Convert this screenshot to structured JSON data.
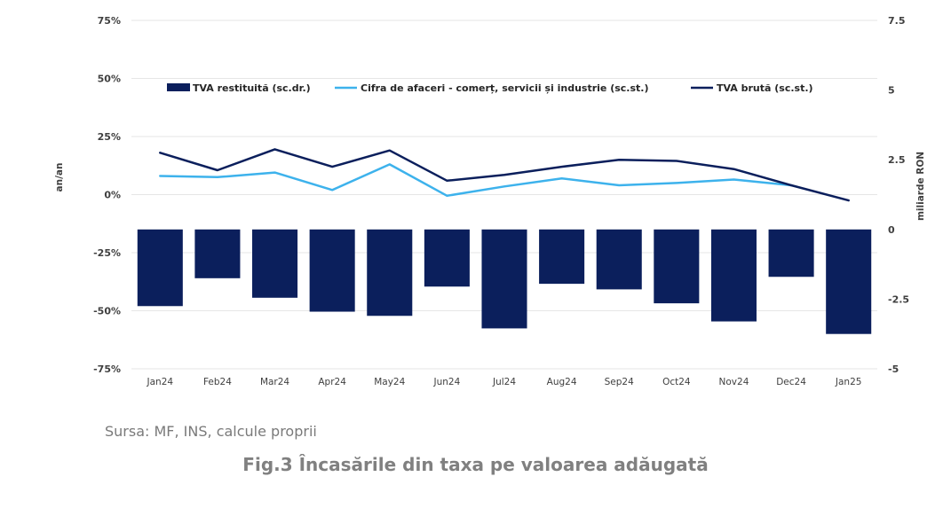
{
  "chart_data": {
    "type": "bar",
    "categories": [
      "Jan24",
      "Feb24",
      "Mar24",
      "Apr24",
      "May24",
      "Jun24",
      "Jul24",
      "Aug24",
      "Sep24",
      "Oct24",
      "Nov24",
      "Dec24",
      "Jan25"
    ],
    "bar_series": {
      "name": "TVA restituită (sc.dr.)",
      "axis": "right",
      "color": "#0b1f5c",
      "values": [
        -2.75,
        -1.75,
        -2.45,
        -2.95,
        -3.1,
        -2.05,
        -3.55,
        -1.95,
        -2.15,
        -2.65,
        -3.3,
        -1.7,
        -3.75
      ]
    },
    "line_series": [
      {
        "name": "Cifra de afaceri - comerț, servicii și industrie (sc.st.)",
        "axis": "left",
        "color": "#3db2ec",
        "values": [
          8,
          7.5,
          9.5,
          2,
          13,
          -0.5,
          3.5,
          7,
          4,
          5,
          6.5,
          4,
          null
        ]
      },
      {
        "name": "TVA brută (sc.st.)",
        "axis": "left",
        "color": "#0b1f5c",
        "values": [
          18,
          10.5,
          19.5,
          12,
          19,
          6,
          8.5,
          12,
          15,
          14.5,
          11,
          4,
          -2.5
        ]
      }
    ],
    "left_axis": {
      "label": "an/an",
      "ylim": [
        -75,
        75
      ],
      "ticks": [
        75,
        50,
        25,
        0,
        -25,
        -50,
        -75
      ],
      "tick_labels": [
        "75%",
        "50%",
        "25%",
        "0%",
        "-25%",
        "-50%",
        "-75%"
      ]
    },
    "right_axis": {
      "label": "miliarde RON",
      "ylim": [
        -5,
        7.5
      ],
      "ticks": [
        7.5,
        5,
        2.5,
        0,
        -2.5,
        -5
      ],
      "tick_labels": [
        "7.5",
        "5",
        "2.5",
        "0",
        "-2.5",
        "-5"
      ]
    },
    "grid": true,
    "legend_position": "top"
  },
  "source": "Sursa: MF, INS, calcule proprii",
  "figure_title": "Fig.3 Încasările din taxa pe valoarea adăugată"
}
